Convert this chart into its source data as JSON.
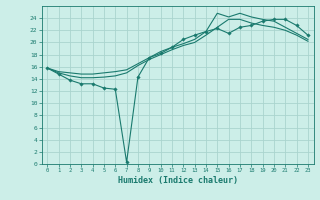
{
  "xlabel": "Humidex (Indice chaleur)",
  "bg_color": "#cceee8",
  "grid_color": "#aad4ce",
  "line_color": "#1a7a6e",
  "xlim": [
    -0.5,
    23.5
  ],
  "ylim": [
    0,
    26
  ],
  "xticks": [
    0,
    1,
    2,
    3,
    4,
    5,
    6,
    7,
    8,
    9,
    10,
    11,
    12,
    13,
    14,
    15,
    16,
    17,
    18,
    19,
    20,
    21,
    22,
    23
  ],
  "yticks": [
    0,
    2,
    4,
    6,
    8,
    10,
    12,
    14,
    16,
    18,
    20,
    22,
    24
  ],
  "line1_x": [
    0,
    1,
    2,
    3,
    4,
    5,
    6,
    7,
    8,
    9,
    10,
    11,
    12,
    13,
    14,
    15,
    16,
    17,
    18,
    19,
    20,
    21,
    22,
    23
  ],
  "line1_y": [
    15.8,
    14.8,
    13.8,
    13.2,
    13.2,
    12.5,
    12.3,
    0.3,
    14.3,
    17.5,
    18.2,
    19.2,
    20.5,
    21.2,
    21.8,
    22.3,
    21.5,
    22.5,
    22.8,
    23.5,
    23.8,
    23.8,
    22.8,
    21.2
  ],
  "line2_x": [
    0,
    1,
    2,
    3,
    4,
    5,
    6,
    7,
    8,
    9,
    10,
    11,
    12,
    13,
    14,
    15,
    16,
    17,
    18,
    19,
    20,
    21,
    22,
    23
  ],
  "line2_y": [
    15.8,
    15.2,
    15.0,
    14.8,
    14.8,
    15.0,
    15.2,
    15.5,
    16.5,
    17.5,
    18.5,
    19.2,
    19.8,
    20.5,
    21.8,
    24.8,
    24.2,
    24.8,
    24.2,
    23.8,
    23.5,
    22.5,
    21.5,
    20.5
  ],
  "line3_x": [
    0,
    1,
    2,
    3,
    4,
    5,
    6,
    7,
    8,
    9,
    10,
    11,
    12,
    13,
    14,
    15,
    16,
    17,
    18,
    19,
    20,
    21,
    22,
    23
  ],
  "line3_y": [
    15.8,
    15.0,
    14.5,
    14.2,
    14.2,
    14.3,
    14.5,
    15.0,
    16.2,
    17.2,
    18.0,
    18.8,
    19.5,
    20.0,
    21.2,
    22.5,
    23.8,
    23.8,
    23.2,
    22.8,
    22.5,
    22.0,
    21.2,
    20.2
  ]
}
